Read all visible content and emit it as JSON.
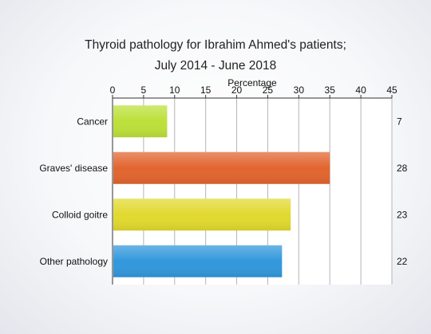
{
  "chart_data": {
    "type": "bar",
    "orientation": "horizontal",
    "title": "Thyroid pathology for Ibrahim Ahmed's patients;",
    "subtitle": "July 2014 - June 2018",
    "xlabel": "Percentage",
    "ylabel": "",
    "xlim": [
      0,
      45
    ],
    "x_ticks": [
      "0",
      "5",
      "10",
      "15",
      "20",
      "25",
      "30",
      "35",
      "40",
      "45"
    ],
    "x_axis_position": "top",
    "grid": true,
    "categories": [
      "Cancer",
      "Graves' disease",
      "Colloid goitre",
      "Other pathology"
    ],
    "values": [
      8.8,
      35,
      28.7,
      27.3
    ],
    "counts": [
      "7",
      "28",
      "23",
      "22"
    ],
    "colors": [
      "#bde03a",
      "#e2652f",
      "#e2d92f",
      "#3298dc"
    ]
  }
}
